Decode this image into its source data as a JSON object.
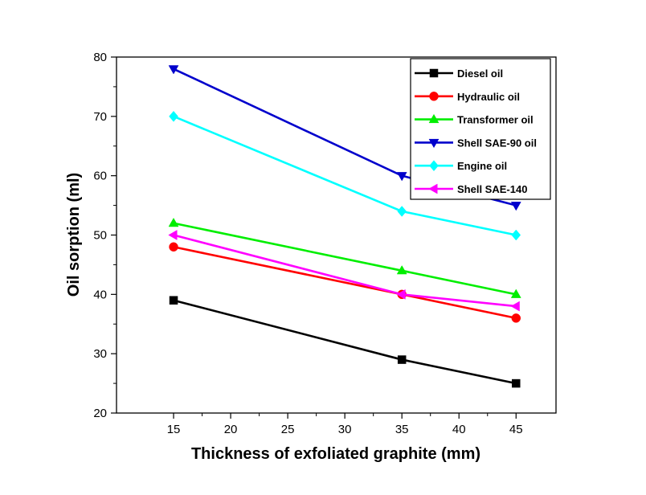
{
  "chart_data": {
    "type": "line",
    "xlabel": "Thickness of exfoliated graphite (mm)",
    "ylabel": "Oil sorption (ml)",
    "x": [
      15,
      35,
      45
    ],
    "xlim": [
      10,
      48.5
    ],
    "ylim": [
      20,
      80
    ],
    "x_ticks": [
      15,
      20,
      25,
      30,
      35,
      40,
      45
    ],
    "y_ticks": [
      20,
      30,
      40,
      50,
      60,
      70,
      80
    ],
    "grid": false,
    "legend_position": "top-right",
    "series": [
      {
        "name": "Diesel oil",
        "values": [
          39,
          29,
          25
        ],
        "color": "#000000",
        "marker": "square"
      },
      {
        "name": "Hydraulic oil",
        "values": [
          48,
          40,
          36
        ],
        "color": "#ff0000",
        "marker": "circle"
      },
      {
        "name": "Transformer oil",
        "values": [
          52,
          44,
          40
        ],
        "color": "#00ee00",
        "marker": "triangle-up"
      },
      {
        "name": "Shell SAE-90 oil",
        "values": [
          78,
          60,
          55
        ],
        "color": "#0000cc",
        "marker": "triangle-down"
      },
      {
        "name": "Engine oil",
        "values": [
          70,
          54,
          50
        ],
        "color": "#00ffff",
        "marker": "diamond"
      },
      {
        "name": "Shell SAE-140",
        "values": [
          50,
          40,
          38
        ],
        "color": "#ff00ff",
        "marker": "triangle-left"
      }
    ]
  }
}
